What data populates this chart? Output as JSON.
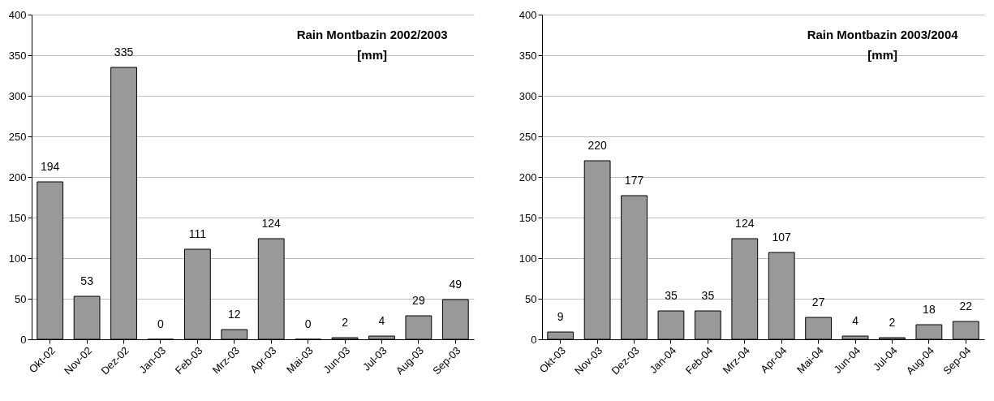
{
  "chart_data": [
    {
      "type": "bar",
      "title": "Rain Montbazin 2002/2003",
      "subtitle": "[mm]",
      "categories": [
        "Okt-02",
        "Nov-02",
        "Dez-02",
        "Jan-03",
        "Feb-03",
        "Mrz-03",
        "Apr-03",
        "Mai-03",
        "Jun-03",
        "Jul-03",
        "Aug-03",
        "Sep-03"
      ],
      "values": [
        194,
        53,
        335,
        0,
        111,
        12,
        124,
        0,
        2,
        4,
        29,
        49
      ],
      "color": "#999999",
      "ylim": [
        0,
        400
      ],
      "yticks": [
        0,
        50,
        100,
        150,
        200,
        250,
        300,
        350,
        400
      ],
      "grid": "y",
      "data_labels": true
    },
    {
      "type": "bar",
      "title": "Rain Montbazin 2003/2004",
      "subtitle": "[mm]",
      "categories": [
        "Okt-03",
        "Nov-03",
        "Dez-03",
        "Jan-04",
        "Feb-04",
        "Mrz-04",
        "Apr-04",
        "Mai-04",
        "Jun-04",
        "Jul-04",
        "Aug-04",
        "Sep-04"
      ],
      "values": [
        9,
        220,
        177,
        35,
        35,
        124,
        107,
        27,
        4,
        2,
        18,
        22
      ],
      "color": "#999999",
      "ylim": [
        0,
        400
      ],
      "yticks": [
        0,
        50,
        100,
        150,
        200,
        250,
        300,
        350,
        400
      ],
      "grid": "y",
      "data_labels": true
    }
  ]
}
